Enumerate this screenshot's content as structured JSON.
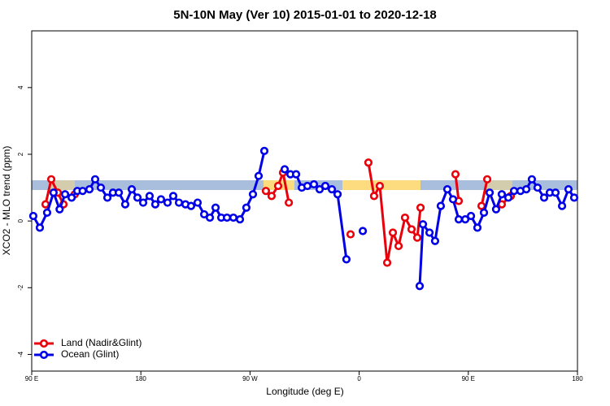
{
  "chart_data": {
    "type": "line",
    "title": "5N-10N May (Ver 10)   2015-01-01 to 2020-12-18",
    "xlabel": "Longitude (deg E)",
    "ylabel": "XCO2 - MLO trend (ppm)",
    "xlim": [
      90,
      540
    ],
    "ylim": [
      -4.5,
      5.7
    ],
    "xticks": [
      {
        "value": 90,
        "label": "90 E"
      },
      180,
      {
        "value": 270,
        "label": "90 W"
      },
      {
        "value": 360,
        "label": "0"
      },
      {
        "value": 450,
        "label": "90 E"
      },
      {
        "value": 540,
        "label": "180"
      }
    ],
    "yticks": [
      -4,
      -2,
      0,
      2,
      4
    ],
    "legend": "bottom-left",
    "series": [
      {
        "name": "Land (Nadir&Glint)",
        "color": "#e8000b",
        "x": [
          101.4,
          106.1,
          111.5,
          116.2,
          null,
          125.5,
          null,
          283.1,
          287.8,
          293.2,
          297.2,
          302,
          null,
          352.9,
          null,
          367.6,
          372.3,
          377,
          383.1,
          387.8,
          392.5,
          397.8,
          403.2,
          407.9,
          410.6,
          null,
          439.4,
          442.1,
          null,
          460.9,
          465.6,
          null,
          477.6,
          485
        ],
        "values": [
          0.5,
          1.25,
          0.85,
          0.5,
          null,
          0.8,
          null,
          0.9,
          0.75,
          1.05,
          1.45,
          0.55,
          null,
          -0.4,
          null,
          1.75,
          0.75,
          1.05,
          -1.25,
          -0.35,
          -0.75,
          0.1,
          -0.25,
          -0.5,
          0.4,
          null,
          1.4,
          0.6,
          null,
          0.45,
          1.25,
          null,
          0.5,
          0.75
        ]
      },
      {
        "name": "Ocean (Glint)",
        "color": "#0000e6",
        "x": [
          91.3,
          96.7,
          102.7,
          108,
          113,
          117.5,
          122.9,
          127.6,
          132,
          137.6,
          142.3,
          147,
          152.4,
          157,
          161.8,
          167.1,
          172.5,
          177.2,
          181.9,
          187.2,
          191.9,
          196.6,
          202,
          206.7,
          211.4,
          216.8,
          221.4,
          226.8,
          232.2,
          236.9,
          241.6,
          246.3,
          251,
          256.3,
          261.7,
          267,
          272.4,
          277.1,
          281.8,
          null,
          298.6,
          303.3,
          308,
          312.7,
          317.3,
          322.7,
          327.4,
          332.1,
          337.5,
          342.2,
          349.5,
          null,
          363,
          null,
          409.9,
          412.6,
          418,
          422.6,
          427.3,
          432.7,
          437.4,
          442.1,
          447.5,
          452.2,
          457.5,
          462.9,
          467.6,
          472.9,
          477.6,
          483,
          487.7,
          493,
          497.8,
          502.4,
          507.1,
          512.5,
          517.2,
          521.9,
          527.3,
          532.6,
          537.3
        ],
        "values": [
          0.15,
          -0.2,
          0.25,
          0.85,
          0.35,
          0.8,
          0.7,
          0.9,
          0.9,
          0.95,
          1.25,
          1.0,
          0.7,
          0.85,
          0.85,
          0.5,
          0.95,
          0.7,
          0.55,
          0.75,
          0.5,
          0.65,
          0.55,
          0.75,
          0.55,
          0.5,
          0.45,
          0.55,
          0.2,
          0.1,
          0.4,
          0.1,
          0.1,
          0.1,
          0.05,
          0.4,
          0.8,
          1.35,
          2.1,
          null,
          1.55,
          1.4,
          1.4,
          1.0,
          1.05,
          1.1,
          0.95,
          1.05,
          0.95,
          0.8,
          -1.15,
          null,
          -0.3,
          null,
          -1.95,
          -0.1,
          -0.35,
          -0.6,
          0.45,
          0.95,
          0.65,
          0.05,
          0.05,
          0.15,
          -0.2,
          0.25,
          0.85,
          0.35,
          0.8,
          0.7,
          0.9,
          0.9,
          0.95,
          1.25,
          1.0,
          0.7,
          0.85,
          0.85,
          0.45,
          0.95,
          0.7
        ]
      }
    ]
  }
}
